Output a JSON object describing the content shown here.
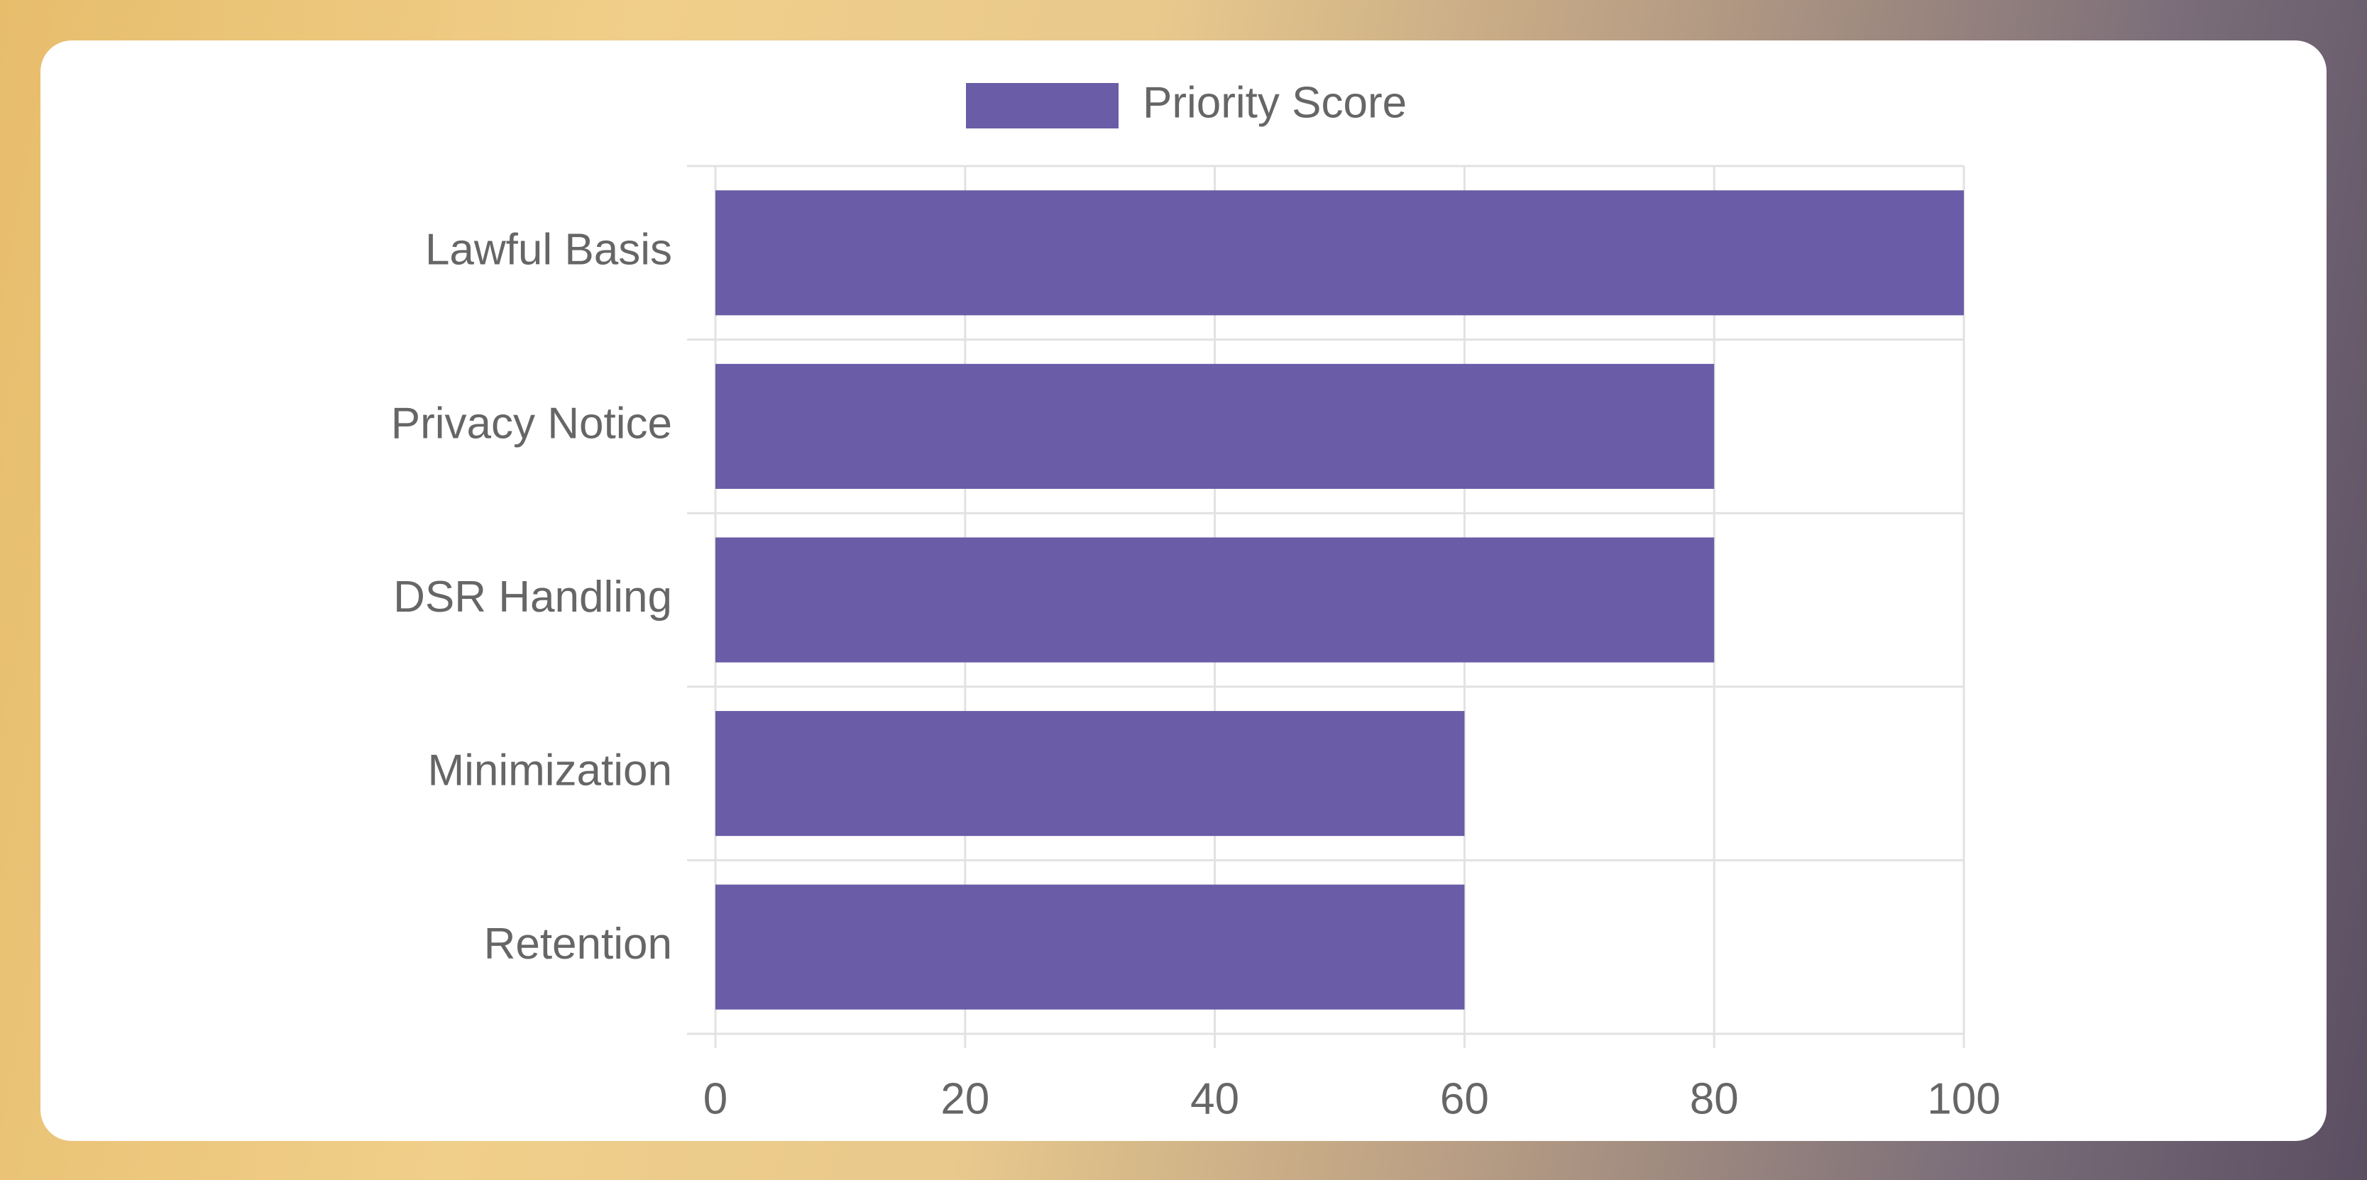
{
  "chart_data": {
    "type": "bar",
    "orientation": "horizontal",
    "categories": [
      "Lawful Basis",
      "Privacy Notice",
      "DSR Handling",
      "Minimization",
      "Retention"
    ],
    "series": [
      {
        "name": "Priority Score",
        "color": "#6a5ca6",
        "values": [
          100,
          80,
          80,
          60,
          60
        ]
      }
    ],
    "xlim": [
      0,
      100
    ],
    "xticks": [
      0,
      20,
      40,
      60,
      80,
      100
    ],
    "grid": true,
    "legend": "top"
  }
}
